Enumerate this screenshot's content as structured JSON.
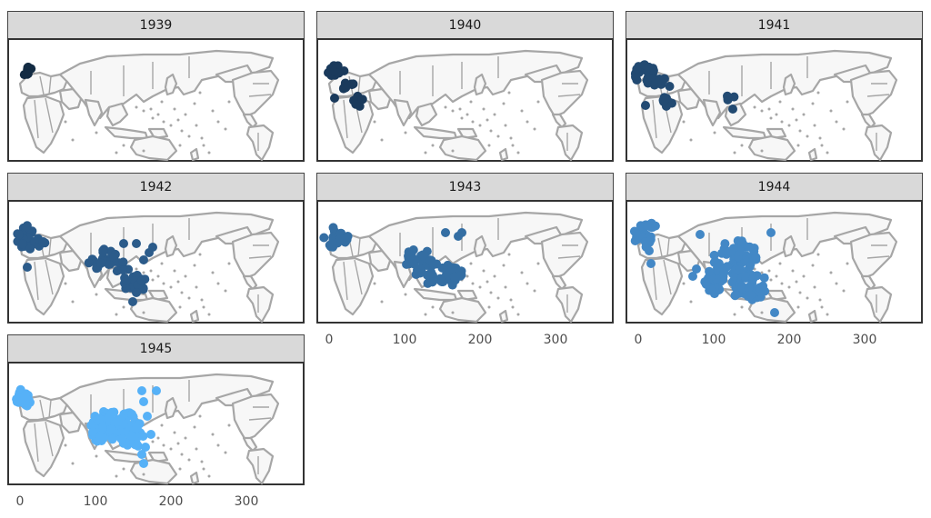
{
  "panels": [
    {
      "label": "1939",
      "color": "#132b43"
    },
    {
      "label": "1940",
      "color": "#1a3a5c"
    },
    {
      "label": "1941",
      "color": "#224a72"
    },
    {
      "label": "1942",
      "color": "#2b5b8a"
    },
    {
      "label": "1943",
      "color": "#346ea3"
    },
    {
      "label": "1944",
      "color": "#4388c6"
    },
    {
      "label": "1945",
      "color": "#56b1f7"
    }
  ],
  "x_ticks": [
    "0",
    "100",
    "200",
    "300"
  ],
  "map": {
    "land_color": "#f7f7f7",
    "border_color": "#a6a6a6",
    "projection": "Pacific-centered world map"
  }
}
